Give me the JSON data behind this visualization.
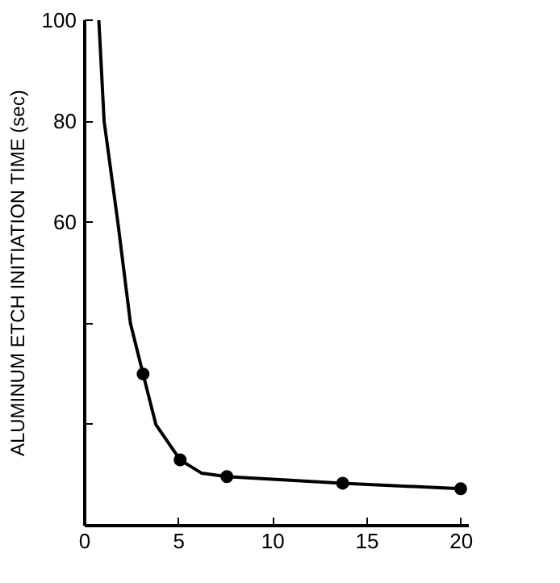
{
  "chart_data": {
    "type": "line",
    "ylabel": "ALUMINUM ETCH INITIATION TIME (sec)",
    "series": [
      {
        "color": "#000000",
        "x": [
          0.75,
          1.03,
          1.76,
          2.43,
          3.1,
          3.78,
          5.07,
          6.2,
          7.55,
          13.7,
          19.97
        ],
        "values": [
          100,
          80,
          60,
          40,
          30,
          20,
          13,
          10.4,
          9.7,
          8.4,
          7.3
        ]
      },
      {
        "type": "scatter",
        "color": "#000000",
        "x": [
          3.1,
          5.07,
          7.55,
          13.7,
          19.97
        ],
        "values": [
          30,
          13,
          9.7,
          8.4,
          7.3
        ],
        "marker": "circle"
      }
    ],
    "xlim": [
      0,
      20.4
    ],
    "ylim": [
      0,
      100
    ],
    "xticks": [
      0,
      5,
      10,
      15,
      20
    ],
    "yticks": [
      {
        "value": 20,
        "label": null
      },
      {
        "value": 40,
        "label": null
      },
      60,
      80,
      100
    ],
    "grid": false
  }
}
